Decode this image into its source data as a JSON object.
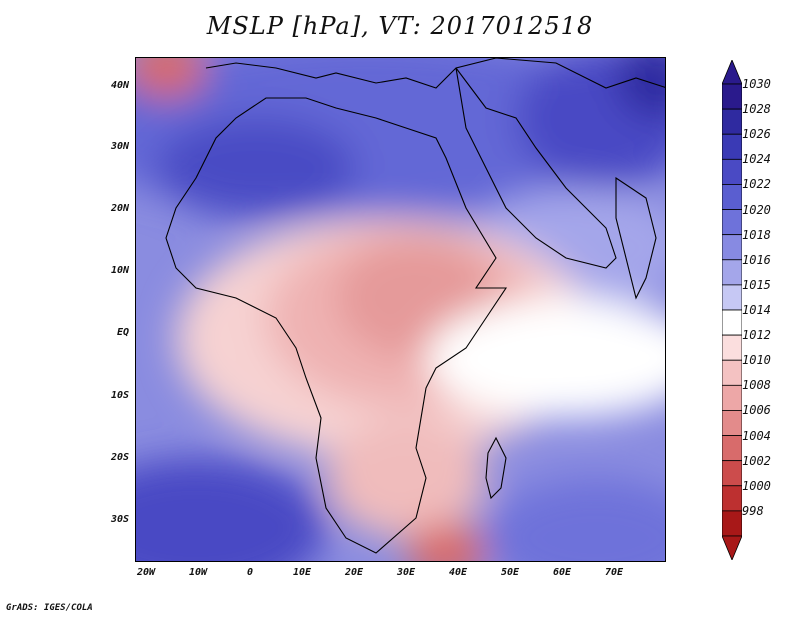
{
  "title": "MSLP [hPa], VT: 2017012518",
  "credit": "GrADS: IGES/COLA",
  "map": {
    "variable": "MSLP",
    "units": "hPa",
    "valid_time": "2017012518",
    "lat_range": [
      -37,
      45
    ],
    "lon_range": [
      -22,
      80
    ],
    "lat_ticks": [
      "40N",
      "30N",
      "20N",
      "10N",
      "EQ",
      "10S",
      "20S",
      "30S"
    ],
    "lon_ticks": [
      "20W",
      "10W",
      "0",
      "10E",
      "20E",
      "30E",
      "40E",
      "50E",
      "60E",
      "70E"
    ]
  },
  "colorbar": {
    "levels": [
      "1030",
      "1028",
      "1026",
      "1024",
      "1022",
      "1020",
      "1018",
      "1016",
      "1015",
      "1014",
      "1012",
      "1010",
      "1008",
      "1006",
      "1004",
      "1002",
      "1000",
      "998"
    ],
    "colors": [
      "#2a1a8c",
      "#2f2aa0",
      "#3a3ab5",
      "#4a4ac4",
      "#5a5ed0",
      "#6e72da",
      "#878ae2",
      "#a4a6ea",
      "#c6c8f4",
      "#ffffff",
      "#fbdede",
      "#f4c2c2",
      "#eda7a7",
      "#e38b8b",
      "#d86b6b",
      "#cc4c4c",
      "#bd3030",
      "#a81818"
    ],
    "top_arrow_color": "#2a1a8c",
    "bottom_arrow_color": "#a81818"
  }
}
